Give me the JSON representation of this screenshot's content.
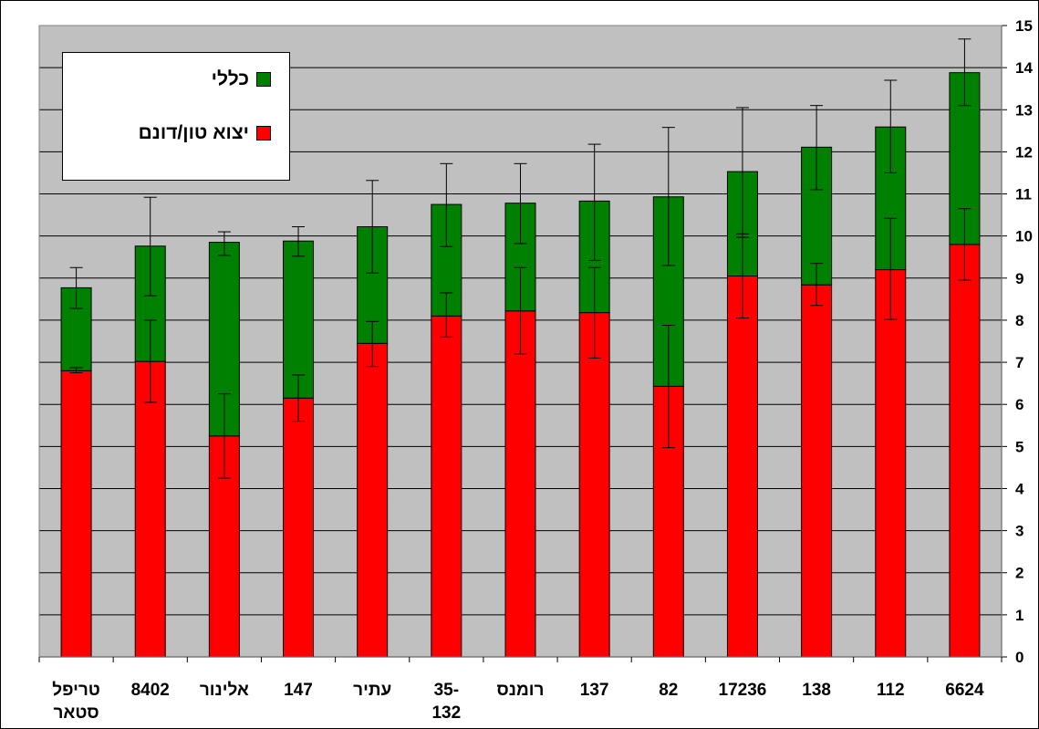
{
  "chart_data": {
    "type": "bar",
    "stacked": true,
    "categories": [
      "טריפל סטאר",
      "8402",
      "אלינור",
      "147",
      "עתיר",
      "35-132",
      "רומנס",
      "137",
      "82",
      "17236",
      "138",
      "112",
      "6624"
    ],
    "category_lines": [
      [
        "טריפל",
        "סטאר"
      ],
      [
        "8402"
      ],
      [
        "אלינור"
      ],
      [
        "147"
      ],
      [
        "עתיר"
      ],
      [
        "35-",
        "132"
      ],
      [
        "רומנס"
      ],
      [
        "137"
      ],
      [
        "82"
      ],
      [
        "17236"
      ],
      [
        "138"
      ],
      [
        "112"
      ],
      [
        "6624"
      ]
    ],
    "series": [
      {
        "name": "יצוא טון/דונם",
        "color": "#ff0000",
        "values": [
          6.8,
          7.02,
          5.25,
          6.15,
          7.45,
          8.1,
          8.22,
          8.18,
          6.43,
          9.05,
          8.84,
          9.2,
          9.8
        ],
        "error_low": [
          6.75,
          6.05,
          4.25,
          5.6,
          6.9,
          7.6,
          7.2,
          7.1,
          4.97,
          8.05,
          8.35,
          8.02,
          8.95
        ],
        "error_high": [
          6.87,
          8.0,
          6.25,
          6.7,
          7.97,
          8.65,
          9.25,
          9.25,
          7.88,
          10.05,
          9.35,
          10.42,
          10.65
        ]
      },
      {
        "name": "כללי",
        "color": "#008000",
        "values": [
          1.97,
          2.74,
          4.6,
          3.73,
          2.77,
          2.65,
          2.56,
          2.65,
          4.5,
          2.48,
          3.27,
          3.39,
          4.08
        ],
        "error_low": [
          8.28,
          8.58,
          9.54,
          9.52,
          9.12,
          9.75,
          9.82,
          9.42,
          9.3,
          9.97,
          11.1,
          11.5,
          13.1
        ],
        "error_high": [
          9.25,
          10.92,
          10.1,
          10.22,
          11.32,
          11.72,
          11.72,
          12.18,
          12.58,
          13.05,
          13.1,
          13.7,
          14.68
        ]
      }
    ],
    "y_axis": {
      "position": "right",
      "min": 0,
      "max": 15,
      "ticks": [
        "0",
        "1",
        "2",
        "3",
        "4",
        "5",
        "6",
        "7",
        "8",
        "9",
        "10",
        "11",
        "12",
        "13",
        "14",
        "15"
      ]
    },
    "grid": true,
    "legend": {
      "position": "top-left",
      "items": [
        "כללי",
        "יצוא טון/דונם"
      ]
    },
    "colors": {
      "plot_background": "#c0c0c0",
      "grid": "#000000"
    }
  }
}
